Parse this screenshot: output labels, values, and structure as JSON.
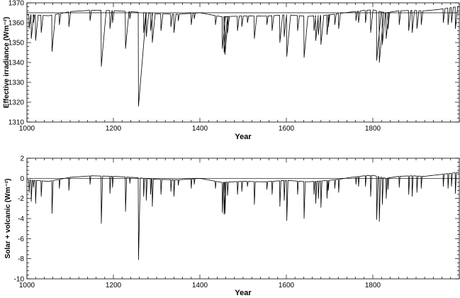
{
  "chart_data": [
    {
      "type": "line",
      "title": "",
      "xlabel": "Year",
      "ylabel": "Effective irradiance",
      "ylabel_unit": "(Wm⁻²)",
      "xlim": [
        1000,
        2000
      ],
      "ylim": [
        1310,
        1370
      ],
      "xticks": [
        1000,
        1200,
        1400,
        1600,
        1800
      ],
      "yticks": [
        1310,
        1320,
        1330,
        1340,
        1350,
        1360,
        1370
      ],
      "reference_line": 1365,
      "grid": false,
      "series": [
        {
          "baseline": [
            [
              1000,
              1364.2
            ],
            [
              1050,
              1363.5
            ],
            [
              1100,
              1365.6
            ],
            [
              1150,
              1366.3
            ],
            [
              1200,
              1366.1
            ],
            [
              1250,
              1365.4
            ],
            [
              1300,
              1364.5
            ],
            [
              1350,
              1364.3
            ],
            [
              1400,
              1365.0
            ],
            [
              1450,
              1363.0
            ],
            [
              1500,
              1363.4
            ],
            [
              1550,
              1363.3
            ],
            [
              1600,
              1364.0
            ],
            [
              1650,
              1363.2
            ],
            [
              1700,
              1364.0
            ],
            [
              1720,
              1364.6
            ],
            [
              1750,
              1365.4
            ],
            [
              1780,
              1366.2
            ],
            [
              1800,
              1366.5
            ],
            [
              1830,
              1365.0
            ],
            [
              1860,
              1366.0
            ],
            [
              1890,
              1366.2
            ],
            [
              1920,
              1366.0
            ],
            [
              1950,
              1366.6
            ],
            [
              1980,
              1367.6
            ],
            [
              2000,
              1368.2
            ]
          ],
          "dips": [
            [
              1005,
              1357
            ],
            [
              1010,
              1352
            ],
            [
              1015,
              1360
            ],
            [
              1020,
              1351
            ],
            [
              1033,
              1355
            ],
            [
              1058,
              1345.5
            ],
            [
              1075,
              1359
            ],
            [
              1097,
              1358
            ],
            [
              1146,
              1361
            ],
            [
              1172,
              1338
            ],
            [
              1192,
              1357
            ],
            [
              1198,
              1360
            ],
            [
              1228,
              1347
            ],
            [
              1238,
              1362
            ],
            [
              1258,
              1318
            ],
            [
              1270,
              1355
            ],
            [
              1276,
              1353
            ],
            [
              1286,
              1356
            ],
            [
              1290,
              1350
            ],
            [
              1310,
              1356
            ],
            [
              1333,
              1358
            ],
            [
              1340,
              1355
            ],
            [
              1350,
              1361
            ],
            [
              1380,
              1359
            ],
            [
              1387,
              1362
            ],
            [
              1436,
              1359
            ],
            [
              1452,
              1347
            ],
            [
              1456,
              1345
            ],
            [
              1458,
              1344
            ],
            [
              1464,
              1355
            ],
            [
              1487,
              1356
            ],
            [
              1497,
              1358
            ],
            [
              1510,
              1360
            ],
            [
              1526,
              1352
            ],
            [
              1555,
              1359
            ],
            [
              1567,
              1356
            ],
            [
              1585,
              1350
            ],
            [
              1595,
              1353
            ],
            [
              1601,
              1343
            ],
            [
              1626,
              1356
            ],
            [
              1641,
              1342.5
            ],
            [
              1664,
              1356
            ],
            [
              1668,
              1351
            ],
            [
              1674,
              1354
            ],
            [
              1680,
              1349
            ],
            [
              1694,
              1354
            ],
            [
              1697,
              1358
            ],
            [
              1712,
              1359
            ],
            [
              1721,
              1357
            ],
            [
              1761,
              1361
            ],
            [
              1767,
              1360
            ],
            [
              1783,
              1360
            ],
            [
              1795,
              1355
            ],
            [
              1809,
              1341
            ],
            [
              1815,
              1340
            ],
            [
              1822,
              1349
            ],
            [
              1831,
              1352
            ],
            [
              1835,
              1357
            ],
            [
              1861,
              1359
            ],
            [
              1883,
              1356
            ],
            [
              1891,
              1355
            ],
            [
              1902,
              1357
            ],
            [
              1912,
              1359
            ],
            [
              1963,
              1360
            ],
            [
              1974,
              1359
            ],
            [
              1982,
              1360
            ],
            [
              1991,
              1357
            ]
          ]
        }
      ]
    },
    {
      "type": "line",
      "title": "",
      "xlabel": "Year",
      "ylabel": "Solar + volcanic",
      "ylabel_unit": "(Wm⁻²)",
      "xlim": [
        1000,
        2000
      ],
      "ylim": [
        -10,
        2
      ],
      "xticks": [
        1000,
        1200,
        1400,
        1600,
        1800
      ],
      "yticks": [
        -10,
        -8,
        -6,
        -4,
        -2,
        0,
        2
      ],
      "reference_line": 0,
      "grid": false,
      "series": [
        {
          "baseline": [
            [
              1000,
              -0.15
            ],
            [
              1050,
              -0.3
            ],
            [
              1100,
              0.1
            ],
            [
              1150,
              0.25
            ],
            [
              1200,
              0.2
            ],
            [
              1250,
              0.08
            ],
            [
              1300,
              -0.1
            ],
            [
              1350,
              -0.15
            ],
            [
              1400,
              0.0
            ],
            [
              1450,
              -0.4
            ],
            [
              1500,
              -0.3
            ],
            [
              1550,
              -0.35
            ],
            [
              1600,
              -0.2
            ],
            [
              1650,
              -0.35
            ],
            [
              1700,
              -0.2
            ],
            [
              1720,
              -0.1
            ],
            [
              1750,
              0.1
            ],
            [
              1780,
              0.25
            ],
            [
              1800,
              0.3
            ],
            [
              1830,
              0.0
            ],
            [
              1860,
              0.2
            ],
            [
              1890,
              0.25
            ],
            [
              1920,
              0.2
            ],
            [
              1950,
              0.35
            ],
            [
              1980,
              0.5
            ],
            [
              2000,
              0.6
            ]
          ],
          "dips": [
            [
              1005,
              -1.4
            ],
            [
              1010,
              -2.3
            ],
            [
              1015,
              -0.9
            ],
            [
              1020,
              -2.5
            ],
            [
              1033,
              -1.8
            ],
            [
              1058,
              -3.5
            ],
            [
              1075,
              -1.0
            ],
            [
              1097,
              -1.2
            ],
            [
              1146,
              -0.6
            ],
            [
              1172,
              -4.5
            ],
            [
              1192,
              -1.5
            ],
            [
              1198,
              -0.9
            ],
            [
              1228,
              -3.3
            ],
            [
              1238,
              -0.5
            ],
            [
              1258,
              -8.1
            ],
            [
              1270,
              -1.8
            ],
            [
              1276,
              -2.2
            ],
            [
              1286,
              -1.6
            ],
            [
              1290,
              -2.8
            ],
            [
              1310,
              -1.6
            ],
            [
              1333,
              -1.3
            ],
            [
              1340,
              -1.8
            ],
            [
              1350,
              -0.7
            ],
            [
              1380,
              -1.0
            ],
            [
              1387,
              -0.6
            ],
            [
              1436,
              -1.0
            ],
            [
              1452,
              -3.4
            ],
            [
              1456,
              -3.6
            ],
            [
              1458,
              -3.5
            ],
            [
              1464,
              -1.7
            ],
            [
              1487,
              -1.6
            ],
            [
              1497,
              -1.3
            ],
            [
              1510,
              -0.8
            ],
            [
              1526,
              -2.6
            ],
            [
              1555,
              -1.1
            ],
            [
              1567,
              -1.6
            ],
            [
              1585,
              -2.8
            ],
            [
              1595,
              -2.2
            ],
            [
              1601,
              -4.2
            ],
            [
              1626,
              -1.6
            ],
            [
              1641,
              -4.0
            ],
            [
              1664,
              -1.6
            ],
            [
              1668,
              -2.5
            ],
            [
              1674,
              -2.0
            ],
            [
              1680,
              -2.9
            ],
            [
              1694,
              -2.0
            ],
            [
              1697,
              -1.2
            ],
            [
              1712,
              -1.0
            ],
            [
              1721,
              -1.4
            ],
            [
              1761,
              -0.6
            ],
            [
              1767,
              -0.8
            ],
            [
              1783,
              -0.8
            ],
            [
              1795,
              -1.8
            ],
            [
              1809,
              -4.1
            ],
            [
              1815,
              -4.3
            ],
            [
              1822,
              -2.6
            ],
            [
              1831,
              -2.0
            ],
            [
              1835,
              -1.1
            ],
            [
              1861,
              -0.9
            ],
            [
              1883,
              -1.6
            ],
            [
              1891,
              -1.8
            ],
            [
              1902,
              -1.4
            ],
            [
              1912,
              -1.0
            ],
            [
              1963,
              -0.8
            ],
            [
              1974,
              -1.0
            ],
            [
              1982,
              -0.8
            ],
            [
              1991,
              -1.5
            ]
          ]
        }
      ]
    }
  ]
}
